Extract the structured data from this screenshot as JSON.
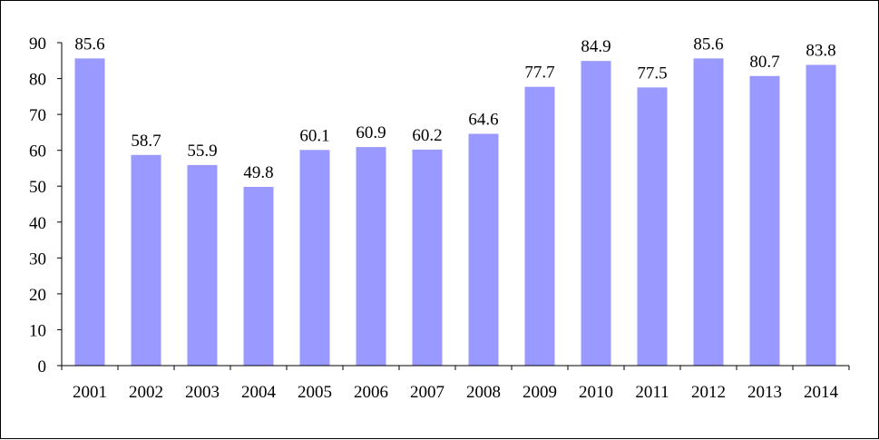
{
  "chart_data": {
    "type": "bar",
    "categories": [
      "2001",
      "2002",
      "2003",
      "2004",
      "2005",
      "2006",
      "2007",
      "2008",
      "2009",
      "2010",
      "2011",
      "2012",
      "2013",
      "2014"
    ],
    "values": [
      85.6,
      58.7,
      55.9,
      49.8,
      60.1,
      60.9,
      60.2,
      64.6,
      77.7,
      84.9,
      77.5,
      85.6,
      80.7,
      83.8
    ],
    "data_labels": [
      "85.6",
      "58.7",
      "55.9",
      "49.8",
      "60.1",
      "60.9",
      "60.2",
      "64.6",
      "77.7",
      "84.9",
      "77.5",
      "85.6",
      "80.7",
      "83.8"
    ],
    "y_ticks": [
      0,
      10,
      20,
      30,
      40,
      50,
      60,
      70,
      80,
      90
    ],
    "ylim": [
      0,
      90
    ],
    "title": "",
    "xlabel": "",
    "ylabel": "",
    "grid": false,
    "legend": "none",
    "colors": {
      "bar": "#9999ff",
      "axis": "#000000",
      "text": "#000000"
    }
  }
}
